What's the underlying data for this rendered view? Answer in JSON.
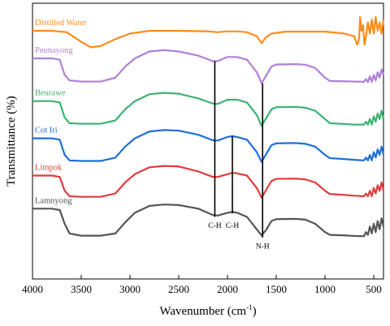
{
  "chart_data": {
    "type": "line",
    "xlabel": "Wavenumber (cm",
    "xlabel_sup": "-1",
    "xlabel_end": ")",
    "ylabel": "Transmittance (%)",
    "xlim": [
      4000,
      400
    ],
    "ylim": [
      0,
      100
    ],
    "x_ticks": [
      4000,
      3500,
      3000,
      2500,
      2000,
      1500,
      1000,
      500
    ],
    "grid": false,
    "series": [
      {
        "name": "Distilled Water",
        "color": "#ff8c1a",
        "points": [
          [
            4000,
            90
          ],
          [
            3800,
            90
          ],
          [
            3650,
            89.5
          ],
          [
            3500,
            86
          ],
          [
            3400,
            84
          ],
          [
            3300,
            84.5
          ],
          [
            3150,
            87
          ],
          [
            3000,
            89
          ],
          [
            2800,
            90
          ],
          [
            2500,
            90
          ],
          [
            2200,
            89.8
          ],
          [
            2100,
            89.5
          ],
          [
            2000,
            89.8
          ],
          [
            1900,
            89.8
          ],
          [
            1800,
            89.5
          ],
          [
            1700,
            88
          ],
          [
            1650,
            85.5
          ],
          [
            1610,
            87.5
          ],
          [
            1550,
            89
          ],
          [
            1400,
            89.7
          ],
          [
            1000,
            89.7
          ],
          [
            800,
            89
          ],
          [
            700,
            88
          ],
          [
            670,
            85
          ],
          [
            650,
            87
          ],
          [
            640,
            95
          ],
          [
            625,
            90
          ],
          [
            610,
            92
          ],
          [
            595,
            85
          ],
          [
            580,
            88
          ],
          [
            560,
            93
          ],
          [
            540,
            89
          ],
          [
            520,
            94
          ],
          [
            500,
            89
          ],
          [
            480,
            95
          ],
          [
            460,
            90
          ],
          [
            440,
            93
          ],
          [
            420,
            89
          ],
          [
            400,
            94
          ]
        ]
      },
      {
        "name": "Peunayong",
        "color": "#b07fd8",
        "points": [
          [
            4000,
            80
          ],
          [
            3800,
            80
          ],
          [
            3720,
            79.5
          ],
          [
            3670,
            74
          ],
          [
            3620,
            72
          ],
          [
            3500,
            71.6
          ],
          [
            3300,
            71.6
          ],
          [
            3150,
            73
          ],
          [
            3050,
            77
          ],
          [
            2950,
            80
          ],
          [
            2800,
            82.5
          ],
          [
            2650,
            83
          ],
          [
            2500,
            82.5
          ],
          [
            2300,
            81
          ],
          [
            2150,
            79
          ],
          [
            2100,
            79
          ],
          [
            2000,
            80.5
          ],
          [
            1900,
            80.5
          ],
          [
            1800,
            79.5
          ],
          [
            1700,
            75
          ],
          [
            1650,
            71
          ],
          [
            1600,
            74
          ],
          [
            1550,
            77
          ],
          [
            1500,
            77.8
          ],
          [
            1300,
            77.9
          ],
          [
            1200,
            77.7
          ],
          [
            1100,
            76.5
          ],
          [
            1000,
            73
          ],
          [
            950,
            71.8
          ],
          [
            800,
            71.7
          ],
          [
            700,
            71.6
          ],
          [
            600,
            71.5
          ],
          [
            580,
            72.5
          ],
          [
            560,
            71.4
          ],
          [
            540,
            73.5
          ],
          [
            520,
            71.5
          ],
          [
            500,
            74
          ],
          [
            480,
            72
          ],
          [
            460,
            75
          ],
          [
            440,
            73
          ],
          [
            420,
            76
          ],
          [
            400,
            74
          ]
        ]
      },
      {
        "name": "Beurawe",
        "color": "#3cb371",
        "points": [
          [
            4000,
            64.5
          ],
          [
            3800,
            64.5
          ],
          [
            3720,
            64
          ],
          [
            3670,
            58.5
          ],
          [
            3620,
            56.5
          ],
          [
            3500,
            56.3
          ],
          [
            3300,
            56.3
          ],
          [
            3150,
            57.5
          ],
          [
            3050,
            61.5
          ],
          [
            2950,
            64.5
          ],
          [
            2800,
            67
          ],
          [
            2650,
            67.5
          ],
          [
            2500,
            67.2
          ],
          [
            2300,
            65.5
          ],
          [
            2150,
            63.6
          ],
          [
            2100,
            63.5
          ],
          [
            2000,
            65
          ],
          [
            1900,
            65
          ],
          [
            1800,
            64
          ],
          [
            1700,
            59.5
          ],
          [
            1650,
            55.5
          ],
          [
            1600,
            58.5
          ],
          [
            1550,
            61.5
          ],
          [
            1500,
            62.3
          ],
          [
            1300,
            62.4
          ],
          [
            1200,
            62.1
          ],
          [
            1100,
            61
          ],
          [
            1000,
            58
          ],
          [
            950,
            56.5
          ],
          [
            800,
            56.2
          ],
          [
            700,
            56
          ],
          [
            600,
            56
          ],
          [
            580,
            57
          ],
          [
            560,
            56
          ],
          [
            540,
            58
          ],
          [
            520,
            56
          ],
          [
            500,
            59
          ],
          [
            480,
            57
          ],
          [
            460,
            60
          ],
          [
            440,
            58
          ],
          [
            420,
            61
          ],
          [
            400,
            58
          ]
        ]
      },
      {
        "name": "Cot Iri",
        "color": "#1e6fd9",
        "points": [
          [
            4000,
            51
          ],
          [
            3800,
            51
          ],
          [
            3720,
            50.5
          ],
          [
            3670,
            45
          ],
          [
            3620,
            43
          ],
          [
            3500,
            42.8
          ],
          [
            3300,
            42.8
          ],
          [
            3150,
            44
          ],
          [
            3050,
            48
          ],
          [
            2950,
            51
          ],
          [
            2800,
            53.5
          ],
          [
            2650,
            54
          ],
          [
            2500,
            53.8
          ],
          [
            2300,
            52.3
          ],
          [
            2150,
            50.3
          ],
          [
            2100,
            50.2
          ],
          [
            2000,
            51.5
          ],
          [
            1950,
            51.8
          ],
          [
            1900,
            51.5
          ],
          [
            1800,
            50.5
          ],
          [
            1700,
            46
          ],
          [
            1650,
            42.5
          ],
          [
            1600,
            45.5
          ],
          [
            1550,
            48.5
          ],
          [
            1500,
            49.2
          ],
          [
            1300,
            49.3
          ],
          [
            1200,
            49
          ],
          [
            1100,
            48
          ],
          [
            1000,
            45
          ],
          [
            950,
            43.8
          ],
          [
            800,
            43.5
          ],
          [
            700,
            43.2
          ],
          [
            600,
            43
          ],
          [
            580,
            44
          ],
          [
            560,
            43
          ],
          [
            540,
            45
          ],
          [
            520,
            43
          ],
          [
            500,
            46
          ],
          [
            480,
            44
          ],
          [
            460,
            47
          ],
          [
            440,
            45
          ],
          [
            420,
            48
          ],
          [
            400,
            45
          ]
        ]
      },
      {
        "name": "Limpok",
        "color": "#e03c3c",
        "points": [
          [
            4000,
            37.5
          ],
          [
            3800,
            37.5
          ],
          [
            3720,
            37
          ],
          [
            3670,
            32
          ],
          [
            3620,
            30
          ],
          [
            3500,
            29.8
          ],
          [
            3300,
            29.8
          ],
          [
            3150,
            31
          ],
          [
            3050,
            35
          ],
          [
            2950,
            38
          ],
          [
            2800,
            40.5
          ],
          [
            2650,
            41
          ],
          [
            2500,
            40.8
          ],
          [
            2300,
            39
          ],
          [
            2150,
            37
          ],
          [
            2100,
            37
          ],
          [
            2000,
            38
          ],
          [
            1950,
            38.5
          ],
          [
            1900,
            38.3
          ],
          [
            1800,
            37.5
          ],
          [
            1700,
            33
          ],
          [
            1650,
            29.5
          ],
          [
            1600,
            32.5
          ],
          [
            1550,
            35.5
          ],
          [
            1500,
            36.3
          ],
          [
            1300,
            36.4
          ],
          [
            1200,
            36.1
          ],
          [
            1100,
            35
          ],
          [
            1000,
            32
          ],
          [
            950,
            30.8
          ],
          [
            800,
            30.5
          ],
          [
            700,
            30.2
          ],
          [
            600,
            30
          ],
          [
            580,
            31
          ],
          [
            560,
            30
          ],
          [
            540,
            32
          ],
          [
            520,
            30
          ],
          [
            500,
            33
          ],
          [
            480,
            31
          ],
          [
            460,
            34
          ],
          [
            440,
            32
          ],
          [
            420,
            35
          ],
          [
            400,
            32
          ]
        ]
      },
      {
        "name": "Lamnyong",
        "color": "#555555",
        "points": [
          [
            4000,
            25.5
          ],
          [
            3800,
            25.5
          ],
          [
            3720,
            25
          ],
          [
            3670,
            20
          ],
          [
            3620,
            16.5
          ],
          [
            3500,
            15.7
          ],
          [
            3300,
            15.7
          ],
          [
            3150,
            16.5
          ],
          [
            3050,
            20.5
          ],
          [
            2950,
            24
          ],
          [
            2800,
            26.5
          ],
          [
            2650,
            27
          ],
          [
            2500,
            26.8
          ],
          [
            2300,
            25.5
          ],
          [
            2150,
            23.2
          ],
          [
            2100,
            23
          ],
          [
            2000,
            24
          ],
          [
            1950,
            24.3
          ],
          [
            1900,
            24
          ],
          [
            1800,
            22.5
          ],
          [
            1700,
            18
          ],
          [
            1650,
            15.8
          ],
          [
            1600,
            18
          ],
          [
            1550,
            21
          ],
          [
            1500,
            21.7
          ],
          [
            1300,
            21.8
          ],
          [
            1200,
            21.5
          ],
          [
            1100,
            20
          ],
          [
            1000,
            17
          ],
          [
            950,
            16
          ],
          [
            800,
            15.8
          ],
          [
            700,
            15.6
          ],
          [
            600,
            15.5
          ],
          [
            580,
            17
          ],
          [
            560,
            16
          ],
          [
            540,
            19
          ],
          [
            520,
            16.5
          ],
          [
            500,
            20
          ],
          [
            480,
            17
          ],
          [
            460,
            21
          ],
          [
            440,
            18
          ],
          [
            420,
            22
          ],
          [
            400,
            19
          ]
        ]
      }
    ],
    "annotations": [
      {
        "label": "C-H",
        "x": 2130,
        "y_top": 79,
        "y_bottom": 22.5,
        "label_y": 18.5
      },
      {
        "label": "C-H",
        "x": 1950,
        "y_top": 51.8,
        "y_bottom": 23.8,
        "label_y": 18.5
      },
      {
        "label": "N-H",
        "x": 1640,
        "y_top": 71,
        "y_bottom": 15,
        "label_y": 11
      }
    ]
  }
}
